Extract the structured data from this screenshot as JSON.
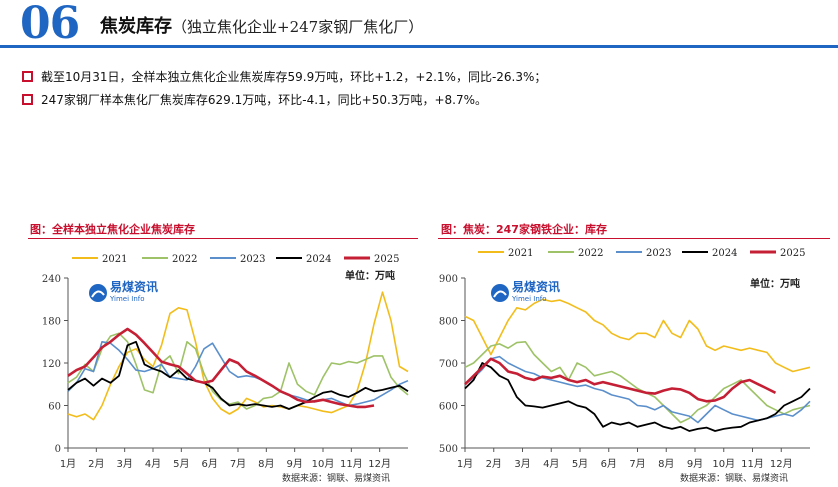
{
  "header": {
    "number": "06",
    "title": "焦炭库存",
    "subtitle": "（独立焦化企业+247家钢厂焦化厂）"
  },
  "bullets": [
    "截至10月31日，全样本独立焦化企业焦炭库存59.9万吨，环比+1.2，+2.1%，同比-26.3%；",
    "247家钢厂样本焦化厂焦炭库存629.1万吨，环比-4.1，同比+50.3万吨，+8.7%。"
  ],
  "logo": {
    "name": "易煤资讯",
    "sub": "Yimei Info"
  },
  "colors": {
    "accent": "#1f66c3",
    "red": "#c8102e",
    "2021": "#f2bd1b",
    "2022": "#9ec267",
    "2023": "#5b8fcb",
    "2024": "#000000",
    "2025": "#c51f35"
  },
  "chart_data": [
    {
      "type": "line",
      "title": "图：全样本独立焦化企业焦炭库存",
      "unit": "单位：万吨",
      "source": "数据来源：钢联、易煤资讯",
      "x_ticks": [
        "1月",
        "2月",
        "3月",
        "4月",
        "5月",
        "6月",
        "7月",
        "8月",
        "9月",
        "10月",
        "11月",
        "12月"
      ],
      "x_domain": [
        0,
        12
      ],
      "ylim": [
        0,
        240
      ],
      "y_ticks": [
        0,
        60,
        120,
        180,
        240
      ],
      "legend": [
        "2021",
        "2022",
        "2023",
        "2024",
        "2025"
      ],
      "series": [
        {
          "name": "2021",
          "x": [
            0,
            0.3,
            0.6,
            0.9,
            1.2,
            1.5,
            1.8,
            2.1,
            2.4,
            2.7,
            3.0,
            3.3,
            3.6,
            3.9,
            4.2,
            4.5,
            4.8,
            5.1,
            5.4,
            5.7,
            6.0,
            6.3,
            6.6,
            6.9,
            7.2,
            7.5,
            7.8,
            8.1,
            8.4,
            8.7,
            9.0,
            9.3,
            9.6,
            9.9,
            10.2,
            10.5,
            10.8,
            11.1,
            11.4,
            11.7,
            12.0
          ],
          "y": [
            48,
            44,
            48,
            40,
            60,
            90,
            115,
            135,
            140,
            125,
            115,
            145,
            190,
            198,
            195,
            150,
            95,
            70,
            55,
            48,
            55,
            70,
            65,
            58,
            60,
            58,
            55,
            60,
            58,
            55,
            52,
            50,
            55,
            60,
            80,
            120,
            175,
            220,
            180,
            115,
            108
          ]
        },
        {
          "name": "2022",
          "x": [
            0,
            0.3,
            0.6,
            0.9,
            1.2,
            1.5,
            1.8,
            2.1,
            2.4,
            2.7,
            3.0,
            3.3,
            3.6,
            3.9,
            4.2,
            4.5,
            4.8,
            5.1,
            5.4,
            5.7,
            6.0,
            6.3,
            6.6,
            6.9,
            7.2,
            7.5,
            7.8,
            8.1,
            8.4,
            8.7,
            9.0,
            9.3,
            9.6,
            9.9,
            10.2,
            10.5,
            10.8,
            11.1,
            11.4,
            11.7,
            12.0
          ],
          "y": [
            92,
            100,
            118,
            108,
            140,
            158,
            162,
            150,
            118,
            82,
            78,
            120,
            130,
            105,
            150,
            140,
            105,
            80,
            68,
            62,
            65,
            55,
            60,
            70,
            72,
            80,
            120,
            90,
            80,
            75,
            100,
            120,
            118,
            122,
            120,
            125,
            130,
            130,
            100,
            85,
            75
          ]
        },
        {
          "name": "2023",
          "x": [
            0,
            0.3,
            0.6,
            0.9,
            1.2,
            1.5,
            1.8,
            2.1,
            2.4,
            2.7,
            3.0,
            3.3,
            3.6,
            3.9,
            4.2,
            4.5,
            4.8,
            5.1,
            5.4,
            5.7,
            6.0,
            6.3,
            6.6,
            6.9,
            7.2,
            7.5,
            7.8,
            8.1,
            8.4,
            8.7,
            9.0,
            9.3,
            9.6,
            9.9,
            10.2,
            10.5,
            10.8,
            11.1,
            11.4,
            11.7,
            12.0
          ],
          "y": [
            80,
            92,
            112,
            108,
            150,
            148,
            138,
            125,
            110,
            108,
            112,
            118,
            100,
            98,
            96,
            115,
            140,
            148,
            128,
            108,
            100,
            102,
            100,
            95,
            88,
            80,
            75,
            72,
            68,
            65,
            68,
            70,
            65,
            60,
            62,
            65,
            68,
            75,
            82,
            90,
            95
          ]
        },
        {
          "name": "2024",
          "x": [
            0,
            0.3,
            0.6,
            0.9,
            1.2,
            1.5,
            1.8,
            2.1,
            2.4,
            2.7,
            3.0,
            3.3,
            3.6,
            3.9,
            4.2,
            4.5,
            4.8,
            5.1,
            5.4,
            5.7,
            6.0,
            6.3,
            6.6,
            6.9,
            7.2,
            7.5,
            7.8,
            8.1,
            8.4,
            8.7,
            9.0,
            9.3,
            9.6,
            9.9,
            10.2,
            10.5,
            10.8,
            11.1,
            11.4,
            11.7,
            12.0
          ],
          "y": [
            82,
            92,
            98,
            88,
            98,
            92,
            102,
            145,
            150,
            118,
            112,
            108,
            100,
            110,
            98,
            95,
            92,
            85,
            70,
            60,
            62,
            60,
            62,
            60,
            58,
            60,
            55,
            60,
            65,
            72,
            78,
            80,
            75,
            72,
            78,
            85,
            80,
            82,
            85,
            88,
            80
          ]
        },
        {
          "name": "2025",
          "x": [
            0,
            0.3,
            0.6,
            0.9,
            1.2,
            1.5,
            1.8,
            2.1,
            2.4,
            2.7,
            3.0,
            3.3,
            3.6,
            3.9,
            4.2,
            4.5,
            4.8,
            5.1,
            5.4,
            5.7,
            6.0,
            6.3,
            6.6,
            6.9,
            7.2,
            7.5,
            7.8,
            8.1,
            8.4,
            8.7,
            9.0,
            9.3,
            9.6,
            9.9,
            10.2,
            10.5,
            10.8
          ],
          "y": [
            102,
            110,
            115,
            128,
            142,
            150,
            160,
            168,
            160,
            148,
            135,
            122,
            118,
            115,
            105,
            95,
            92,
            95,
            110,
            125,
            120,
            108,
            102,
            95,
            88,
            80,
            75,
            68,
            65,
            66,
            68,
            65,
            62,
            60,
            58,
            58,
            60
          ]
        }
      ]
    },
    {
      "type": "line",
      "title": "图：焦炭：247家钢铁企业：库存",
      "unit": "单位：万吨",
      "source": "数据来源：钢联、易煤资讯",
      "x_ticks": [
        "1月",
        "2月",
        "3月",
        "4月",
        "5月",
        "6月",
        "7月",
        "8月",
        "9月",
        "10月",
        "11月",
        "12月"
      ],
      "x_domain": [
        0,
        12
      ],
      "ylim": [
        500,
        900
      ],
      "y_ticks": [
        500,
        600,
        700,
        800,
        900
      ],
      "legend": [
        "2021",
        "2022",
        "2023",
        "2024",
        "2025"
      ],
      "series": [
        {
          "name": "2021",
          "x": [
            0,
            0.3,
            0.6,
            0.9,
            1.2,
            1.5,
            1.8,
            2.1,
            2.4,
            2.7,
            3.0,
            3.3,
            3.6,
            3.9,
            4.2,
            4.5,
            4.8,
            5.1,
            5.4,
            5.7,
            6.0,
            6.3,
            6.6,
            6.9,
            7.2,
            7.5,
            7.8,
            8.1,
            8.4,
            8.7,
            9.0,
            9.3,
            9.6,
            9.9,
            10.2,
            10.5,
            10.8,
            11.1,
            11.4,
            11.7,
            12.0
          ],
          "y": [
            810,
            800,
            760,
            720,
            760,
            800,
            830,
            825,
            840,
            850,
            845,
            848,
            840,
            830,
            820,
            800,
            790,
            770,
            760,
            755,
            770,
            770,
            760,
            800,
            770,
            760,
            800,
            780,
            740,
            730,
            740,
            735,
            730,
            735,
            730,
            725,
            700,
            690,
            680,
            685,
            690
          ]
        },
        {
          "name": "2022",
          "x": [
            0,
            0.3,
            0.6,
            0.9,
            1.2,
            1.5,
            1.8,
            2.1,
            2.4,
            2.7,
            3.0,
            3.3,
            3.6,
            3.9,
            4.2,
            4.5,
            4.8,
            5.1,
            5.4,
            5.7,
            6.0,
            6.3,
            6.6,
            6.9,
            7.2,
            7.5,
            7.8,
            8.1,
            8.4,
            8.7,
            9.0,
            9.3,
            9.6,
            9.9,
            10.2,
            10.5,
            10.8,
            11.1,
            11.4,
            11.7,
            12.0
          ],
          "y": [
            690,
            700,
            720,
            740,
            745,
            735,
            748,
            750,
            720,
            700,
            680,
            690,
            660,
            700,
            690,
            670,
            675,
            680,
            670,
            655,
            640,
            630,
            620,
            600,
            580,
            560,
            570,
            590,
            600,
            620,
            640,
            650,
            660,
            640,
            620,
            600,
            590,
            580,
            590,
            595,
            600
          ]
        },
        {
          "name": "2023",
          "x": [
            0,
            0.3,
            0.6,
            0.9,
            1.2,
            1.5,
            1.8,
            2.1,
            2.4,
            2.7,
            3.0,
            3.3,
            3.6,
            3.9,
            4.2,
            4.5,
            4.8,
            5.1,
            5.4,
            5.7,
            6.0,
            6.3,
            6.6,
            6.9,
            7.2,
            7.5,
            7.8,
            8.1,
            8.4,
            8.7,
            9.0,
            9.3,
            9.6,
            9.9,
            10.2,
            10.5,
            10.8,
            11.1,
            11.4,
            11.7,
            12.0
          ],
          "y": [
            650,
            665,
            685,
            710,
            715,
            700,
            690,
            680,
            675,
            665,
            660,
            655,
            650,
            645,
            648,
            640,
            635,
            625,
            620,
            615,
            600,
            598,
            590,
            600,
            585,
            580,
            575,
            560,
            580,
            600,
            590,
            580,
            575,
            570,
            565,
            570,
            575,
            580,
            575,
            590,
            610
          ]
        },
        {
          "name": "2024",
          "x": [
            0,
            0.3,
            0.6,
            0.9,
            1.2,
            1.5,
            1.8,
            2.1,
            2.4,
            2.7,
            3.0,
            3.3,
            3.6,
            3.9,
            4.2,
            4.5,
            4.8,
            5.1,
            5.4,
            5.7,
            6.0,
            6.3,
            6.6,
            6.9,
            7.2,
            7.5,
            7.8,
            8.1,
            8.4,
            8.7,
            9.0,
            9.3,
            9.6,
            9.9,
            10.2,
            10.5,
            10.8,
            11.1,
            11.4,
            11.7,
            12.0
          ],
          "y": [
            640,
            660,
            700,
            690,
            670,
            660,
            620,
            600,
            598,
            595,
            600,
            605,
            610,
            600,
            595,
            580,
            550,
            560,
            555,
            560,
            550,
            555,
            560,
            550,
            545,
            550,
            540,
            545,
            548,
            540,
            545,
            548,
            550,
            560,
            565,
            570,
            580,
            600,
            610,
            620,
            640
          ]
        },
        {
          "name": "2025",
          "x": [
            0,
            0.3,
            0.6,
            0.9,
            1.2,
            1.5,
            1.8,
            2.1,
            2.4,
            2.7,
            3.0,
            3.3,
            3.6,
            3.9,
            4.2,
            4.5,
            4.8,
            5.1,
            5.4,
            5.7,
            6.0,
            6.3,
            6.6,
            6.9,
            7.2,
            7.5,
            7.8,
            8.1,
            8.4,
            8.7,
            9.0,
            9.3,
            9.6,
            9.9,
            10.2,
            10.5,
            10.8
          ],
          "y": [
            650,
            670,
            690,
            710,
            700,
            680,
            675,
            665,
            660,
            668,
            665,
            670,
            660,
            655,
            660,
            650,
            655,
            650,
            645,
            640,
            635,
            630,
            628,
            635,
            640,
            638,
            630,
            615,
            610,
            612,
            620,
            640,
            655,
            660,
            650,
            640,
            630
          ]
        }
      ]
    }
  ]
}
